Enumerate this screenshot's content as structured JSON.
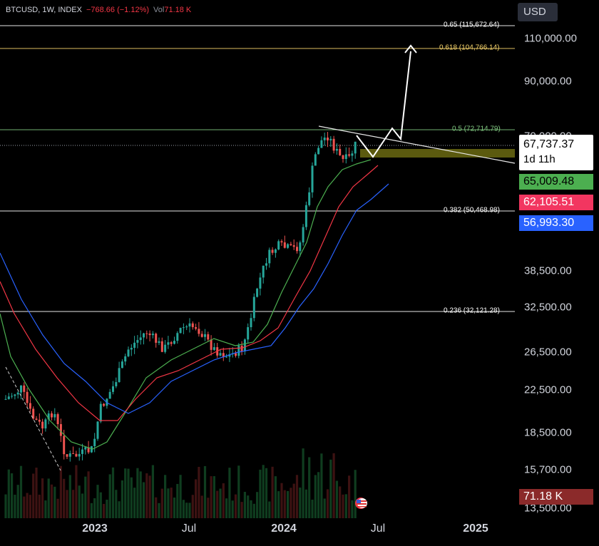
{
  "legend": {
    "symbol": "BTCUSD, 1W, INDEX",
    "change": "−768.66 (−1.12%)",
    "vol_label": "Vol",
    "vol_value": "71.18 K"
  },
  "currency_button": "USD",
  "y_ticks": [
    "110,000.00",
    "90,000.00",
    "70,000.00",
    "38,500.00",
    "32,500.00",
    "26,500.00",
    "22,500.00",
    "18,500.00",
    "15,700.00",
    "13,500.00"
  ],
  "x_ticks": [
    "2023",
    "Jul",
    "2024",
    "Jul",
    "2025"
  ],
  "fib_levels": [
    {
      "label": "0.65 (115,672.64)",
      "color": "#ffffff"
    },
    {
      "label": "0.618 (104,766.14)",
      "color": "#f5d36b"
    },
    {
      "label": "0.5 (72,714.79)",
      "color": "#7fc67f"
    },
    {
      "label": "0.382 (50,468.98)",
      "color": "#ffffff"
    },
    {
      "label": "0.236 (32,121.28)",
      "color": "#ffffff"
    }
  ],
  "price_tag": {
    "price": "67,737.37",
    "countdown": "1d 11h"
  },
  "ma_tags": [
    {
      "value": "65,009.48",
      "color": "#4caf50"
    },
    {
      "value": "62,105.51",
      "color": "#f23660"
    },
    {
      "value": "56,993.30",
      "color": "#2962ff"
    }
  ],
  "volume_tag": {
    "value": "71.18 K",
    "color": "#8b2a2a"
  },
  "colors": {
    "up": "#26a69a",
    "down": "#ef5350",
    "ma_short": "#4caf50",
    "ma_mid": "#f23645",
    "ma_long": "#2962ff"
  },
  "chart_data": {
    "type": "candlestick",
    "timeframe": "1W",
    "y_scale": "log",
    "series": [
      {
        "name": "ma_short",
        "color": "#4caf50"
      },
      {
        "name": "ma_mid",
        "color": "#f23645"
      },
      {
        "name": "ma_long",
        "color": "#2962ff"
      }
    ],
    "trendline": "white descending line from ~73,800 to ~64,000",
    "projection": "white zigzag arrow up to ~106,000",
    "zone": "olive rectangle ~64,500–66,800"
  }
}
